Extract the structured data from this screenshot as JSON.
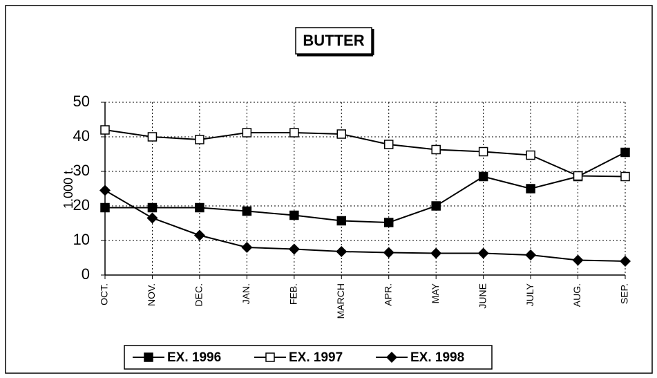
{
  "chart_data": {
    "type": "line",
    "title": "BUTTER",
    "y_label": "1.000 t.",
    "categories": [
      "OCT.",
      "NOV.",
      "DEC.",
      "JAN.",
      "FEB.",
      "MARCH",
      "APR.",
      "MAY",
      "JUNE",
      "JULY",
      "AUG.",
      "SEP."
    ],
    "series": [
      {
        "name": "EX. 1996",
        "color": "#000000",
        "marker": "square-filled",
        "values": [
          19.5,
          19.5,
          19.5,
          18.5,
          17.3,
          15.7,
          15.2,
          20,
          28.5,
          25,
          28.5,
          35.5
        ]
      },
      {
        "name": "EX. 1997",
        "color": "#000000",
        "marker": "square-open",
        "values": [
          42,
          40,
          39.2,
          41.2,
          41.2,
          40.8,
          37.8,
          36.3,
          35.7,
          34.7,
          28.7,
          28.5
        ]
      },
      {
        "name": "EX. 1998",
        "color": "#000000",
        "marker": "diamond",
        "values": [
          24.5,
          16.5,
          11.5,
          8,
          7.5,
          6.8,
          6.5,
          6.3,
          6.3,
          5.8,
          4.3,
          4.0
        ]
      }
    ],
    "ylim": [
      0,
      50
    ],
    "yticks": [
      0,
      10,
      20,
      30,
      40,
      50
    ],
    "grid": true,
    "legend": "bottom"
  }
}
